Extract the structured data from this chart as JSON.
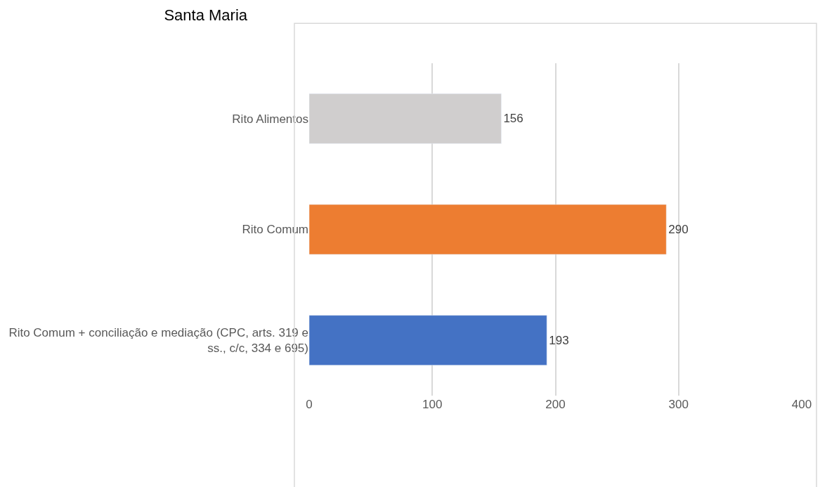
{
  "chart_data": {
    "type": "bar",
    "orientation": "horizontal",
    "title": "Santa Maria",
    "categories": [
      "Rito Alimentos",
      "Rito Comum",
      "Rito Comum + conciliação e mediação (CPC, arts. 319 e ss., c/c, 334 e 695)"
    ],
    "values": [
      156,
      290,
      193
    ],
    "colors": [
      "#d0cece",
      "#ed7d31",
      "#4472c4"
    ],
    "xlim": [
      0,
      400
    ],
    "xticks": [
      0,
      100,
      200,
      300,
      400
    ],
    "grid": "x",
    "data_labels": true
  }
}
